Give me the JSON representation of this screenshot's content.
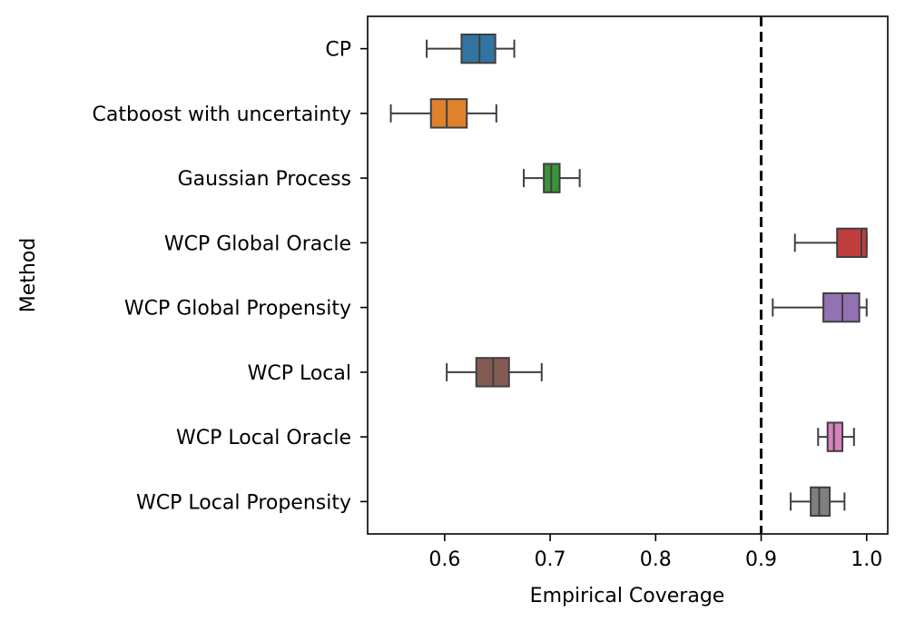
{
  "chart_data": {
    "type": "boxplot",
    "orientation": "horizontal",
    "title": "",
    "xlabel": "Empirical Coverage",
    "ylabel": "Method",
    "xlim": [
      0.527,
      1.02
    ],
    "xticks": [
      0.6,
      0.7,
      0.8,
      0.9,
      1.0
    ],
    "xtick_labels": [
      "0.6",
      "0.7",
      "0.8",
      "0.9",
      "1.0"
    ],
    "reference_line": {
      "x": 0.9,
      "style": "dashed",
      "color": "#000000"
    },
    "grid": false,
    "legend": "none",
    "series": [
      {
        "name": "CP",
        "color": "#3274a1",
        "whisker_low": 0.583,
        "q1": 0.616,
        "median": 0.633,
        "q3": 0.648,
        "whisker_high": 0.666
      },
      {
        "name": "Catboost with uncertainty",
        "color": "#e1812c",
        "whisker_low": 0.549,
        "q1": 0.587,
        "median": 0.602,
        "q3": 0.621,
        "whisker_high": 0.649
      },
      {
        "name": "Gaussian Process",
        "color": "#3a923a",
        "whisker_low": 0.675,
        "q1": 0.694,
        "median": 0.701,
        "q3": 0.709,
        "whisker_high": 0.728
      },
      {
        "name": "WCP Global Oracle",
        "color": "#c03d3e",
        "whisker_low": 0.932,
        "q1": 0.972,
        "median": 0.995,
        "q3": 1.0,
        "whisker_high": 1.0
      },
      {
        "name": "WCP Global Propensity",
        "color": "#9372b2",
        "whisker_low": 0.911,
        "q1": 0.959,
        "median": 0.977,
        "q3": 0.993,
        "whisker_high": 1.0
      },
      {
        "name": "WCP Local",
        "color": "#845b53",
        "whisker_low": 0.602,
        "q1": 0.63,
        "median": 0.646,
        "q3": 0.661,
        "whisker_high": 0.692
      },
      {
        "name": "WCP Local Oracle",
        "color": "#d684bd",
        "whisker_low": 0.954,
        "q1": 0.963,
        "median": 0.969,
        "q3": 0.977,
        "whisker_high": 0.988
      },
      {
        "name": "WCP Local Propensity",
        "color": "#7f7f7f",
        "whisker_low": 0.928,
        "q1": 0.947,
        "median": 0.955,
        "q3": 0.965,
        "whisker_high": 0.979
      }
    ]
  }
}
